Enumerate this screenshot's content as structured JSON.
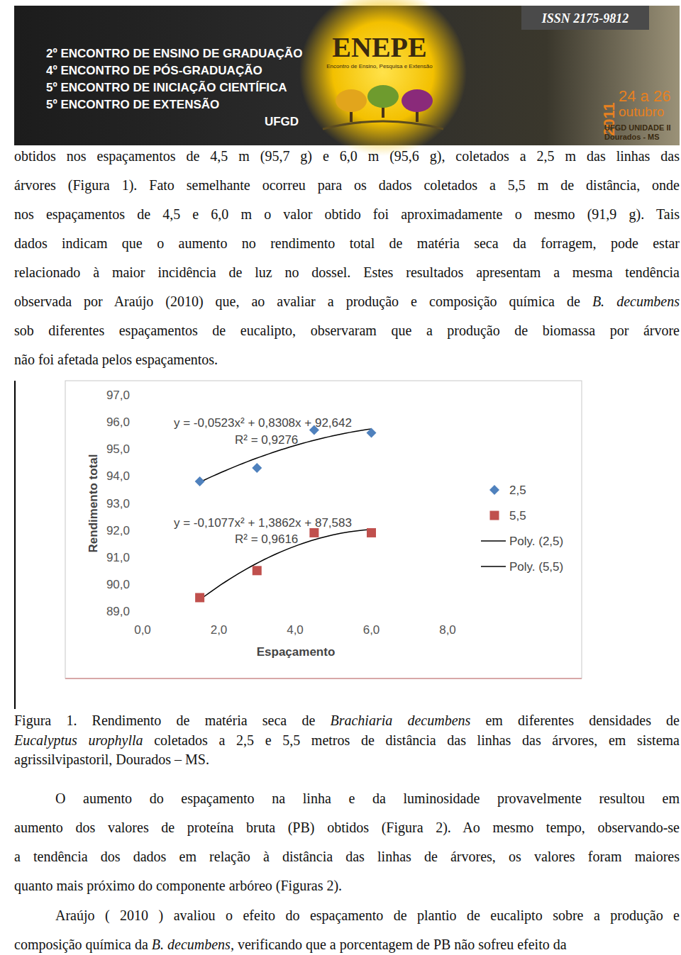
{
  "header": {
    "lines": [
      "2º ENCONTRO DE ENSINO DE GRADUAÇÃO",
      "4º ENCONTRO DE PÓS-GRADUAÇÃO",
      "5º ENCONTRO DE INICIAÇÃO CIENTÍFICA",
      "5º ENCONTRO DE EXTENSÃO",
      "UFGD"
    ],
    "issn": "ISSN 2175-9812",
    "logo": "ENEPE",
    "logo_subtitle": "Encontro de Ensino, Pesquisa e Extensão",
    "year": "2011",
    "dates": "24 a 26",
    "month": "outubro",
    "venue": "UFGD UNIDADE II",
    "city": "Dourados - MS"
  },
  "paragraphs_before": [
    [
      [
        {
          "text": "obtidos nos espaçamentos de 4,5 m (95,7 g) e 6,0 m (95,6 g), coletados a 2,5 m das linhas das",
          "italic": false
        }
      ],
      [
        {
          "text": "árvores (Figura 1). Fato semelhante ocorreu para os dados coletados a 5,5 m de distância, onde",
          "italic": false
        }
      ],
      [
        {
          "text": "nos espaçamentos de 4,5 e 6,0 m o valor obtido foi aproximadamente o mesmo (91,9 g). Tais",
          "italic": false
        }
      ],
      [
        {
          "text": "dados indicam que o aumento no rendimento total de matéria seca da forragem, pode estar",
          "italic": false
        }
      ],
      [
        {
          "text": "relacionado à maior incidência de luz no dossel. Estes resultados apresentam a mesma tendência",
          "italic": false
        }
      ],
      [
        {
          "text": "observada por Araújo (2010) que, ao avaliar a produção e composição química de ",
          "italic": false
        },
        {
          "text": "B. decumbens",
          "italic": true
        }
      ],
      [
        {
          "text": "sob diferentes espaçamentos de eucalipto, observaram que a produção de biomassa por árvore",
          "italic": false
        }
      ],
      [
        {
          "text": "não foi afetada pelos espaçamentos.",
          "italic": false
        }
      ]
    ]
  ],
  "chart_data": {
    "type": "scatter",
    "x_label": "Espaçamento",
    "y_label": "Rendimento total",
    "xlim": [
      0,
      8
    ],
    "ylim": [
      89,
      97
    ],
    "xticks": [
      {
        "value": 0,
        "label": "0,0"
      },
      {
        "value": 2,
        "label": "2,0"
      },
      {
        "value": 4,
        "label": "4,0"
      },
      {
        "value": 6,
        "label": "6,0"
      },
      {
        "value": 8,
        "label": "8,0"
      }
    ],
    "yticks": [
      {
        "value": 89,
        "label": "89,0"
      },
      {
        "value": 90,
        "label": "90,0"
      },
      {
        "value": 91,
        "label": "91,0"
      },
      {
        "value": 92,
        "label": "92,0"
      },
      {
        "value": 93,
        "label": "93,0"
      },
      {
        "value": 94,
        "label": "94,0"
      },
      {
        "value": 95,
        "label": "95,0"
      },
      {
        "value": 96,
        "label": "96,0"
      },
      {
        "value": 97,
        "label": "97,0"
      }
    ],
    "grid": false,
    "legend": "right",
    "series": [
      {
        "name": "2,5",
        "color": "#4f81bd",
        "marker": "diamond",
        "x": [
          1.5,
          3,
          4.5,
          6
        ],
        "values": [
          93.8,
          94.3,
          95.7,
          95.6
        ],
        "trendline": {
          "name": "Poly. (2,5)",
          "color": "#000000",
          "coefficients": [
            -0.0523,
            0.8308,
            92.642
          ],
          "equation": "y = -0,0523x² + 0,8308x + 92,642",
          "r2_label": "R² = 0,9276"
        }
      },
      {
        "name": "5,5",
        "color": "#c0504d",
        "marker": "square",
        "x": [
          1.5,
          3,
          4.5,
          6
        ],
        "values": [
          89.5,
          90.5,
          91.9,
          91.9
        ],
        "trendline": {
          "name": "Poly. (5,5)",
          "color": "#000000",
          "coefficients": [
            -0.1077,
            1.3862,
            87.583
          ],
          "equation": "y = -0,1077x² + 1,3862x + 87,583",
          "r2_label": "R² = 0,9616"
        }
      }
    ]
  },
  "caption": [
    [
      {
        "text": "Figura 1. Rendimento de matéria seca de ",
        "italic": false
      },
      {
        "text": "Brachiaria decumbens",
        "italic": true
      },
      {
        "text": " em diferentes densidades de",
        "italic": false
      }
    ],
    [
      {
        "text": "Eucalyptus urophylla",
        "italic": true
      },
      {
        "text": " coletados a 2,5 e 5,5 metros de distância das linhas das árvores, em sistema",
        "italic": false
      }
    ],
    [
      {
        "text": "agrissilvipastoril, Dourados – MS.",
        "italic": false
      }
    ]
  ],
  "paragraphs_after": [
    [
      [
        {
          "text": "O aumento do espaçamento na linha e da luminosidade provavelmente resultou em",
          "italic": false
        }
      ],
      [
        {
          "text": "aumento dos valores de proteína bruta (PB) obtidos (Figura 2). Ao mesmo tempo, observando-se",
          "italic": false
        }
      ],
      [
        {
          "text": "a tendência dos dados em relação à distância das linhas de árvores, os valores foram maiores",
          "italic": false
        }
      ],
      [
        {
          "text": "quanto mais próximo do componente arbóreo (Figuras 2).",
          "italic": false
        }
      ]
    ],
    [
      [
        {
          "text": "Araújo ( 2010 ) avaliou o efeito do espaçamento de plantio de eucalipto sobre a produção e",
          "italic": false
        }
      ],
      [
        {
          "text": "composição química da ",
          "italic": false
        },
        {
          "text": "B. decumbens,",
          "italic": true
        },
        {
          "text": " verificando que a porcentagem de PB não sofreu efeito da",
          "italic": false
        }
      ]
    ]
  ]
}
